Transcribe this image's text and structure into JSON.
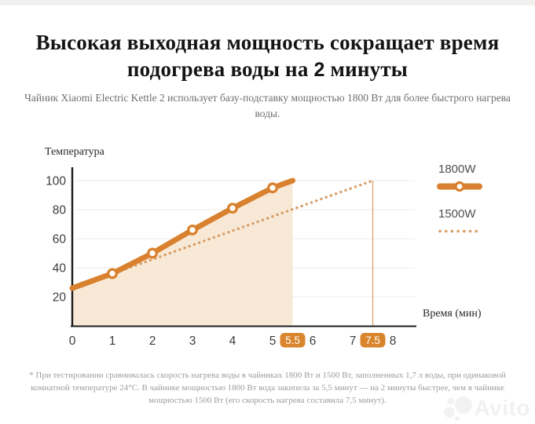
{
  "page": {
    "title": {
      "line1": "Высокая выходная мощность сокращает время",
      "line2_pre": "подогрева воды на ",
      "line2_num": "2",
      "line2_post": " минуты"
    },
    "subtitle": "Чайник Xiaomi Electric Kettle 2 использует базу-подставку мощностью 1800 Вт для более быстрого нагрева воды.",
    "footnote": "* При тестировании сравнивалась скорость нагрева воды в чайниках 1800 Вт и 1500 Вт, заполненных 1,7 л воды, при одинаковой комнатной температуре 24°C. В чайнике мощностью 1800 Вт вода закипела за 5,5 минут — на 2 минуты быстрее, чем в чайнике мощностью 1500 Вт (его скорость нагрева составила 7,5 минут).",
    "watermark": "Avito"
  },
  "chart_data": {
    "type": "line",
    "ylabel": "Температура",
    "xlabel": "Время (мин)",
    "xlim": [
      0,
      8.5
    ],
    "ylim": [
      0,
      108
    ],
    "x_ticks": [
      0,
      1,
      2,
      3,
      4,
      5,
      6,
      7,
      8
    ],
    "highlight_x_ticks": [
      5.5,
      7.5
    ],
    "y_ticks": [
      20,
      40,
      60,
      80,
      100
    ],
    "grid": "horizontal",
    "legend_position": "right",
    "series": [
      {
        "name": "1800W",
        "style": "solid",
        "color": "#d9812e",
        "x": [
          0,
          1,
          2,
          3,
          4,
          5,
          5.5
        ],
        "values": [
          26,
          36,
          50,
          66,
          81,
          95,
          100
        ],
        "marker_x": [
          1,
          2,
          3,
          4,
          5
        ],
        "area_fill": "#f8e9d7",
        "boil_time_min": 5.5
      },
      {
        "name": "1500W",
        "style": "dotted",
        "color": "#d79e68",
        "x": [
          0,
          7.5
        ],
        "values": [
          26,
          100
        ],
        "boil_time_min": 7.5
      }
    ],
    "colors": {
      "axis": "#1c1c1c",
      "grid": "#f0f0f0",
      "tick_text": "#3c3c3c",
      "badge_bg": "#d9852e",
      "badge_text": "#ffffff",
      "boil_marker_line": "#dfa878"
    }
  }
}
